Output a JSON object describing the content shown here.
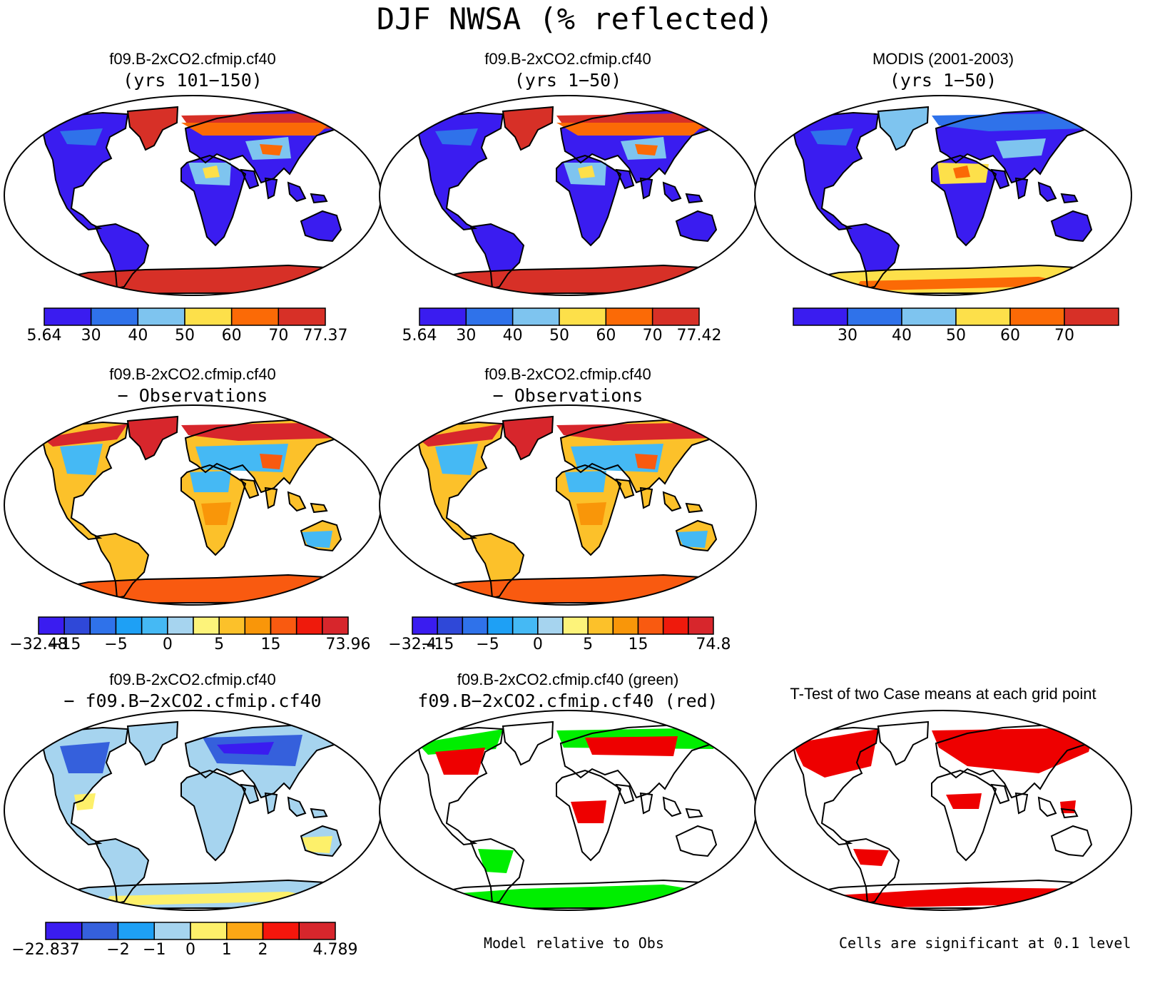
{
  "title": "DJF NWSA (% reflected)",
  "colors": {
    "land_outline": "#000000",
    "palette_abs": [
      "#3a1cf0",
      "#2f72ea",
      "#7ec4ef",
      "#fde04a",
      "#fb6a06",
      "#d73027"
    ],
    "palette_diff": [
      "#3a1cf0",
      "#2f48d8",
      "#2f72ea",
      "#1ea0f5",
      "#45b9f4",
      "#a6d4ef",
      "#fdf37a",
      "#fcc12a",
      "#f99609",
      "#f95a10",
      "#ef1a0c",
      "#d7262c"
    ],
    "palette_case": [
      "#3a1cf0",
      "#3560dc",
      "#1ea0f5",
      "#a6d4ef",
      "#fdf06a",
      "#fca715",
      "#f5160c",
      "#d7262c"
    ],
    "sig_green": "#00ee00",
    "sig_red": "#ee0000"
  },
  "panels": [
    {
      "id": "p1",
      "line1": "f09.B-2xCO2.cfmip.cf40",
      "line2": "(yrs 101−150)",
      "colorbar": {
        "palette": "palette_abs",
        "labels": [
          "5.64",
          "30",
          "40",
          "50",
          "60",
          "70",
          "77.37"
        ]
      }
    },
    {
      "id": "p2",
      "line1": "f09.B-2xCO2.cfmip.cf40",
      "line2": "(yrs 1−50)",
      "colorbar": {
        "palette": "palette_abs",
        "labels": [
          "5.64",
          "30",
          "40",
          "50",
          "60",
          "70",
          "77.42"
        ]
      }
    },
    {
      "id": "p3",
      "line1": "MODIS (2001-2003)",
      "line2": "(yrs 1−50)",
      "colorbar": {
        "palette": "palette_abs",
        "labels": [
          "",
          "30",
          "40",
          "50",
          "60",
          "70",
          ""
        ]
      }
    },
    {
      "id": "p4",
      "line1": "f09.B-2xCO2.cfmip.cf40",
      "line2": "− Observations",
      "colorbar": {
        "palette": "palette_diff",
        "labels": [
          "−32.48",
          "−15",
          "",
          "−5",
          "",
          "0",
          "",
          "5",
          "",
          "15",
          "",
          "",
          "73.96"
        ]
      }
    },
    {
      "id": "p5",
      "line1": "f09.B-2xCO2.cfmip.cf40",
      "line2": "− Observations",
      "colorbar": {
        "palette": "palette_diff",
        "labels": [
          "−32.4",
          "−15",
          "",
          "−5",
          "",
          "0",
          "",
          "5",
          "",
          "15",
          "",
          "",
          "74.8"
        ]
      }
    },
    {
      "id": "p6",
      "line1": "f09.B-2xCO2.cfmip.cf40",
      "line2": "− f09.B−2xCO2.cfmip.cf40",
      "colorbar": {
        "palette": "palette_case",
        "labels": [
          "−22.837",
          "",
          "−2",
          "−1",
          "0",
          "1",
          "2",
          "",
          "4.789"
        ]
      }
    },
    {
      "id": "p7",
      "line1": "f09.B-2xCO2.cfmip.cf40 (green)",
      "line2": "f09.B−2xCO2.cfmip.cf40 (red)",
      "note": "Model relative to Obs"
    },
    {
      "id": "p8",
      "line1": "T-Test of two Case means at each grid point",
      "line2": "",
      "note": "Cells are significant at 0.1 level"
    }
  ]
}
